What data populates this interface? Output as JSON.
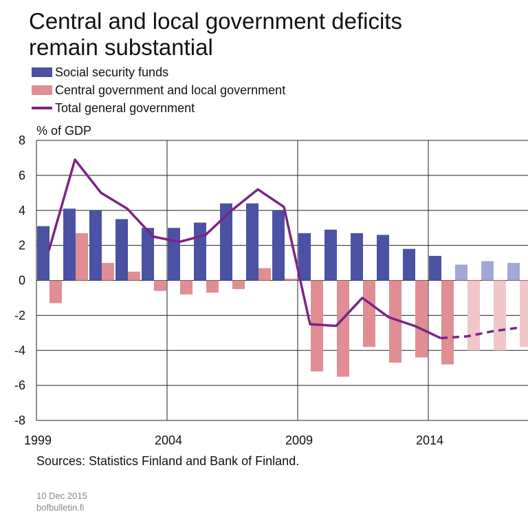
{
  "title_line1": "Central and local government deficits",
  "title_line2": "remain substantial",
  "source": "Sources: Statistics Finland and Bank of Finland.",
  "date": "10 Dec 2015",
  "site": "bofbulletin.fi",
  "chart_data": {
    "type": "bar",
    "ylabel": "% of GDP",
    "ylim": [
      -8,
      8
    ],
    "yticks": [
      8,
      6,
      4,
      2,
      0,
      -2,
      -4,
      -6,
      -8
    ],
    "xticks": [
      "1999",
      "2004",
      "2009",
      "2014"
    ],
    "grid": true,
    "legend_position": "top-left",
    "categories": [
      "1999",
      "2000",
      "2001",
      "2002",
      "2003",
      "2004",
      "2005",
      "2006",
      "2007",
      "2008",
      "2009",
      "2010",
      "2011",
      "2012",
      "2013",
      "2014",
      "2015",
      "2016",
      "2017"
    ],
    "forecast_from": "2015",
    "series": [
      {
        "name": "Social security funds",
        "type": "bar",
        "color": "#4c52a3",
        "forecast_color": "#a3a6d8",
        "values": [
          3.1,
          4.1,
          4.0,
          3.5,
          3.0,
          3.0,
          3.3,
          4.4,
          4.4,
          4.0,
          2.7,
          2.9,
          2.7,
          2.6,
          1.8,
          1.4,
          0.9,
          1.1,
          1.0
        ]
      },
      {
        "name": "Central government and local government",
        "type": "bar",
        "color": "#e08e93",
        "forecast_color": "#f0c6c8",
        "values": [
          -1.3,
          2.7,
          1.0,
          0.5,
          -0.6,
          -0.8,
          -0.7,
          -0.5,
          0.7,
          0.1,
          -5.2,
          -5.5,
          -3.8,
          -4.7,
          -4.4,
          -4.8,
          -4.0,
          -4.0,
          -3.8
        ]
      },
      {
        "name": "Total general government",
        "type": "line",
        "color": "#7b2583",
        "values": [
          1.7,
          6.9,
          5.0,
          4.1,
          2.5,
          2.2,
          2.6,
          4.0,
          5.2,
          4.2,
          -2.5,
          -2.6,
          -1.0,
          -2.1,
          -2.6,
          -3.3,
          -3.2,
          -2.9,
          -2.7
        ]
      }
    ]
  }
}
